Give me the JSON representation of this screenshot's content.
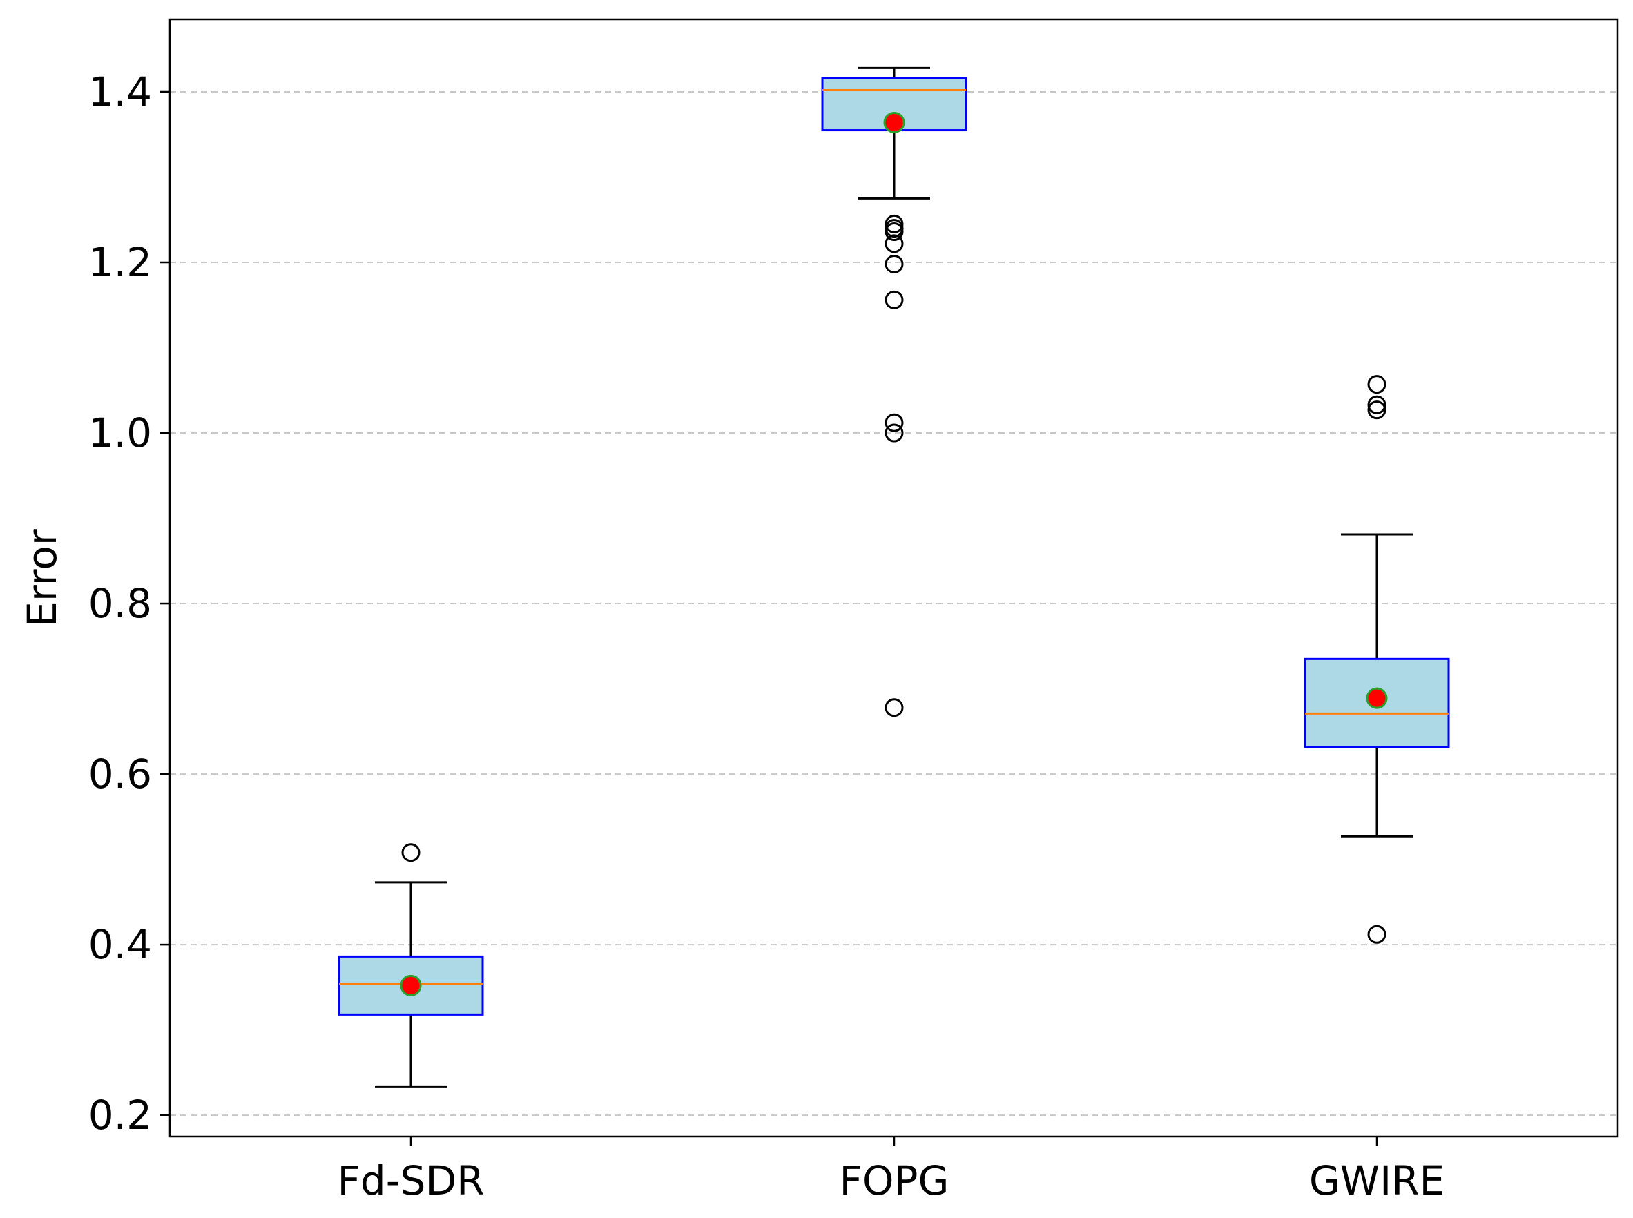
{
  "chart_data": {
    "type": "box",
    "title": "",
    "xlabel": "",
    "ylabel": "Error",
    "ylim": [
      0.175,
      1.485
    ],
    "yticks": [
      0.2,
      0.4,
      0.6,
      0.8,
      1.0,
      1.2,
      1.4
    ],
    "ytick_labels": [
      "0.2",
      "0.4",
      "0.6",
      "0.8",
      "1.0",
      "1.2",
      "1.4"
    ],
    "grid": "y-dashed",
    "categories": [
      "Fd-SDR",
      "FOPG",
      "GWIRE"
    ],
    "boxes": [
      {
        "label": "Fd-SDR",
        "whisker_low": 0.233,
        "q1": 0.318,
        "median": 0.354,
        "q3": 0.386,
        "whisker_high": 0.473,
        "mean": 0.352,
        "outliers": [
          0.508
        ]
      },
      {
        "label": "FOPG",
        "whisker_low": 1.275,
        "q1": 1.355,
        "median": 1.402,
        "q3": 1.416,
        "whisker_high": 1.428,
        "mean": 1.364,
        "outliers": [
          1.245,
          1.24,
          1.236,
          1.222,
          1.198,
          1.156,
          1.012,
          1.0,
          0.678
        ]
      },
      {
        "label": "GWIRE",
        "whisker_low": 0.527,
        "q1": 0.632,
        "median": 0.671,
        "q3": 0.735,
        "whisker_high": 0.881,
        "mean": 0.689,
        "outliers": [
          1.057,
          1.033,
          1.027,
          0.412
        ]
      }
    ],
    "colors": {
      "box_fill": "#add8e6",
      "box_edge": "#0000ff",
      "median": "#ff7f0e",
      "mean_fill": "#ff0000",
      "mean_edge": "#2ca02c",
      "whisker": "#000000",
      "grid": "#c8c8c8"
    }
  }
}
